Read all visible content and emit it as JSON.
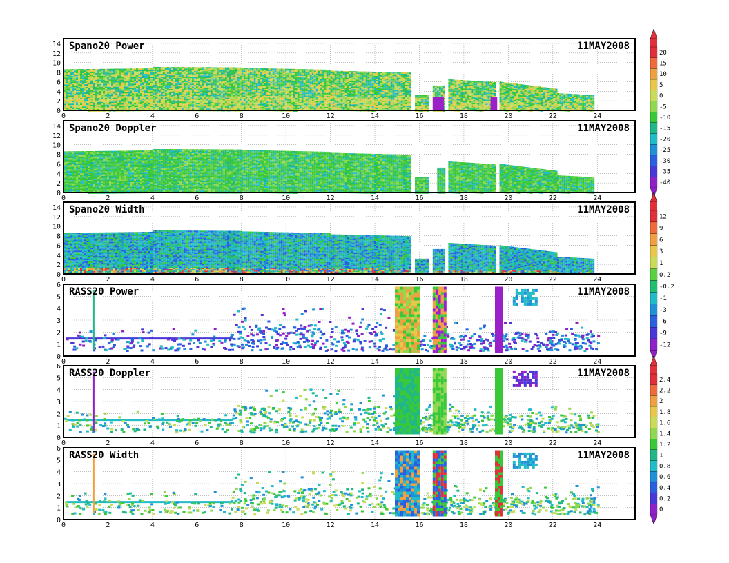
{
  "chart_data": [
    {
      "type": "heatmap",
      "title": "Spano20  Power",
      "date": "11MAY2008",
      "x_ticks": [
        "0",
        "2",
        "4",
        "6",
        "8",
        "10",
        "12",
        "14",
        "16",
        "18",
        "20",
        "22",
        "24"
      ],
      "y_ticks": [
        "0",
        "2",
        "4",
        "6",
        "8",
        "10",
        "12",
        "14"
      ],
      "xlim": [
        0,
        25.7
      ],
      "ylim": [
        0,
        15
      ],
      "colorbar": {
        "labels": [
          "20",
          "15",
          "10",
          "5",
          "0",
          "-5",
          "-10",
          "-15",
          "-20",
          "-25",
          "-30",
          "-35",
          "-40"
        ],
        "colors": [
          "#e0303a",
          "#f06a3c",
          "#f0a040",
          "#e8c84a",
          "#c8dc5a",
          "#90d850",
          "#38c838",
          "#20b888",
          "#22bcc8",
          "#2090d8",
          "#2860e0",
          "#4838d8",
          "#9020c8"
        ]
      },
      "segments": [
        {
          "x": [
            0,
            4
          ],
          "top": [
            8.6,
            8.8
          ]
        },
        {
          "x": [
            4,
            8
          ],
          "top": [
            9.1,
            9.0
          ]
        },
        {
          "x": [
            8,
            12
          ],
          "top": [
            8.9,
            8.5
          ]
        },
        {
          "x": [
            12,
            15.6
          ],
          "top": [
            8.3,
            7.9
          ]
        },
        {
          "x": [
            15.8,
            16.4
          ],
          "top": [
            3.2,
            3.2
          ]
        },
        {
          "x": [
            16.6,
            17.1
          ],
          "top": [
            5.2,
            5.2
          ]
        },
        {
          "x": [
            17.3,
            19.4
          ],
          "top": [
            6.5,
            5.9
          ]
        },
        {
          "x": [
            19.6,
            22.2
          ],
          "top": [
            6.0,
            4.5
          ]
        },
        {
          "x": [
            22.2,
            23.8
          ],
          "top": [
            3.6,
            3.2
          ]
        }
      ],
      "gaps": [
        {
          "x": [
            16.6,
            17.1
          ],
          "color": "#9a20c8"
        },
        {
          "x": [
            19.2,
            19.5
          ],
          "color": "#9a20c8"
        }
      ]
    },
    {
      "type": "heatmap",
      "title": "Spano20  Doppler",
      "date": "11MAY2008",
      "x_ticks": [
        "0",
        "2",
        "4",
        "6",
        "8",
        "10",
        "12",
        "14",
        "16",
        "18",
        "20",
        "22",
        "24"
      ],
      "y_ticks": [
        "0",
        "2",
        "4",
        "6",
        "8",
        "10",
        "12",
        "14"
      ],
      "xlim": [
        0,
        25.7
      ],
      "ylim": [
        0,
        15
      ],
      "segments": [
        {
          "x": [
            0,
            4
          ],
          "top": [
            8.6,
            8.8
          ]
        },
        {
          "x": [
            4,
            8
          ],
          "top": [
            9.1,
            9.0
          ]
        },
        {
          "x": [
            8,
            12
          ],
          "top": [
            8.9,
            8.5
          ]
        },
        {
          "x": [
            12,
            15.6
          ],
          "top": [
            8.3,
            7.9
          ]
        },
        {
          "x": [
            15.8,
            16.4
          ],
          "top": [
            3.2,
            3.2
          ]
        },
        {
          "x": [
            16.8,
            17.1
          ],
          "top": [
            5.2,
            5.2
          ]
        },
        {
          "x": [
            17.3,
            19.4
          ],
          "top": [
            6.5,
            5.9
          ]
        },
        {
          "x": [
            19.6,
            22.2
          ],
          "top": [
            6.0,
            4.5
          ]
        },
        {
          "x": [
            22.2,
            23.8
          ],
          "top": [
            3.6,
            3.2
          ]
        }
      ]
    },
    {
      "type": "heatmap",
      "title": "Spano20  Width",
      "date": "11MAY2008",
      "x_ticks": [
        "0",
        "2",
        "4",
        "6",
        "8",
        "10",
        "12",
        "14",
        "16",
        "18",
        "20",
        "22",
        "24"
      ],
      "y_ticks": [
        "0",
        "2",
        "4",
        "6",
        "8",
        "10",
        "12",
        "14"
      ],
      "xlim": [
        0,
        25.7
      ],
      "ylim": [
        0,
        15
      ],
      "colorbar": {
        "labels": [
          "12",
          "9",
          "6",
          "3",
          "1",
          "0.2",
          "-0.2",
          "-1",
          "-3",
          "-6",
          "-9",
          "-12"
        ],
        "colors": [
          "#e0303a",
          "#f06a3c",
          "#f0a040",
          "#e8c84a",
          "#c8dc5a",
          "#58d040",
          "#20c070",
          "#22bcc8",
          "#2090d8",
          "#2860e0",
          "#4838d8",
          "#9020c8"
        ]
      },
      "segments": [
        {
          "x": [
            0,
            4
          ],
          "top": [
            8.6,
            8.8
          ]
        },
        {
          "x": [
            4,
            8
          ],
          "top": [
            9.1,
            9.0
          ]
        },
        {
          "x": [
            8,
            12
          ],
          "top": [
            8.9,
            8.5
          ]
        },
        {
          "x": [
            12,
            15.6
          ],
          "top": [
            8.3,
            7.9
          ]
        },
        {
          "x": [
            15.8,
            16.4
          ],
          "top": [
            3.2,
            3.2
          ]
        },
        {
          "x": [
            16.6,
            17.1
          ],
          "top": [
            5.2,
            5.2
          ]
        },
        {
          "x": [
            17.3,
            19.4
          ],
          "top": [
            6.5,
            5.9
          ]
        },
        {
          "x": [
            19.6,
            22.2
          ],
          "top": [
            6.0,
            4.5
          ]
        },
        {
          "x": [
            22.2,
            23.8
          ],
          "top": [
            3.6,
            3.2
          ]
        }
      ]
    },
    {
      "type": "heatmap",
      "title": "RASS20  Power",
      "date": "11MAY2008",
      "x_ticks": [
        "0",
        "2",
        "4",
        "6",
        "8",
        "10",
        "12",
        "14",
        "16",
        "18",
        "20",
        "22",
        "24"
      ],
      "y_ticks": [
        "0",
        "1",
        "2",
        "3",
        "4",
        "5",
        "6"
      ],
      "xlim": [
        0,
        25.7
      ],
      "ylim": [
        0,
        6
      ],
      "blocks": [
        {
          "x": [
            14.9,
            15.9
          ],
          "y": [
            0.4,
            5.8
          ],
          "colors": [
            "#38c838",
            "#e8c84a",
            "#f0a040",
            "#90d850"
          ]
        },
        {
          "x": [
            16.6,
            17.2
          ],
          "y": [
            0.4,
            5.8
          ],
          "colors": [
            "#9a20c8",
            "#38c838",
            "#f0a040"
          ]
        },
        {
          "x": [
            19.4,
            19.7
          ],
          "y": [
            0.4,
            5.8
          ],
          "colors": [
            "#9a20c8"
          ]
        }
      ]
    },
    {
      "type": "heatmap",
      "title": "RASS20  Doppler",
      "date": "11MAY2008",
      "x_ticks": [
        "0",
        "2",
        "4",
        "6",
        "8",
        "10",
        "12",
        "14",
        "16",
        "18",
        "20",
        "22",
        "24"
      ],
      "y_ticks": [
        "0",
        "1",
        "2",
        "3",
        "4",
        "5",
        "6"
      ],
      "xlim": [
        0,
        25.7
      ],
      "ylim": [
        0,
        6
      ],
      "colorbar": {
        "labels": [
          "2.4",
          "2.2",
          "2",
          "1.8",
          "1.6",
          "1.4",
          "1.2",
          "1",
          "0.8",
          "0.6",
          "0.4",
          "0.2",
          "0"
        ],
        "colors": [
          "#e0303a",
          "#f06a3c",
          "#f0a040",
          "#e8c84a",
          "#c8dc5a",
          "#90d850",
          "#38c838",
          "#20b888",
          "#22bcc8",
          "#2090d8",
          "#2860e0",
          "#4838d8",
          "#9020c8"
        ]
      },
      "blocks": [
        {
          "x": [
            14.9,
            15.9
          ],
          "y": [
            0.4,
            5.8
          ],
          "colors": [
            "#38c838",
            "#20b888"
          ]
        },
        {
          "x": [
            16.6,
            17.2
          ],
          "y": [
            0.4,
            5.8
          ],
          "colors": [
            "#38c838",
            "#90d850"
          ]
        },
        {
          "x": [
            19.4,
            19.7
          ],
          "y": [
            0.4,
            5.8
          ],
          "colors": [
            "#38c838"
          ]
        }
      ]
    },
    {
      "type": "heatmap",
      "title": "RASS20  Width",
      "date": "11MAY2008",
      "x_ticks": [
        "0",
        "2",
        "4",
        "6",
        "8",
        "10",
        "12",
        "14",
        "16",
        "18",
        "20",
        "22",
        "24"
      ],
      "y_ticks": [
        "0",
        "1",
        "2",
        "3",
        "4",
        "5",
        "6"
      ],
      "xlim": [
        0,
        25.7
      ],
      "ylim": [
        0,
        6
      ],
      "blocks": [
        {
          "x": [
            14.9,
            15.9
          ],
          "y": [
            0.4,
            5.8
          ],
          "colors": [
            "#2090d8",
            "#2860e0",
            "#22bcc8",
            "#f0a040"
          ]
        },
        {
          "x": [
            16.6,
            17.2
          ],
          "y": [
            0.4,
            5.8
          ],
          "colors": [
            "#2860e0",
            "#e0303a",
            "#38c838"
          ]
        },
        {
          "x": [
            19.4,
            19.7
          ],
          "y": [
            0.4,
            5.8
          ],
          "colors": [
            "#e0303a",
            "#38c838"
          ]
        }
      ]
    }
  ]
}
